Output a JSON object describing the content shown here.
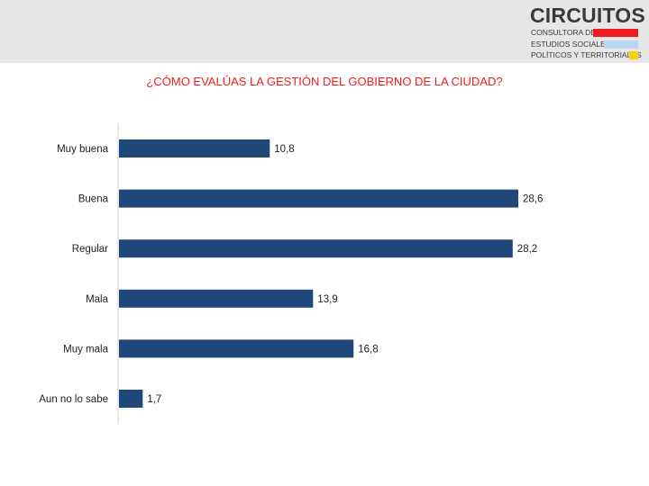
{
  "header": {
    "brand": "CIRCUITOS",
    "tagline_lines": [
      "CONSULTORA DE",
      "ESTUDIOS SOCIALES,",
      "POLÍTICOS Y TERRITORIALES"
    ],
    "stripe_colors": [
      "#ee1c1c",
      "#b9d6f2",
      "#f5d20a"
    ],
    "background_color": "#e6e6e6"
  },
  "chart_data": {
    "type": "bar",
    "orientation": "horizontal",
    "title": "¿CÓMO EVALÚAS LA GESTIÓN DEL GOBIERNO DE LA CIUDAD?",
    "categories": [
      "Muy buena",
      "Buena",
      "Regular",
      "Mala",
      "Muy mala",
      "Aun no lo sabe"
    ],
    "values": [
      10.8,
      28.6,
      28.2,
      13.9,
      16.8,
      1.7
    ],
    "value_labels": [
      "10,8",
      "28,6",
      "28,2",
      "13,9",
      "16,8",
      "1,7"
    ],
    "xlim": [
      0,
      30
    ],
    "grid": false,
    "legend": "none",
    "bar_color": "#1f4779",
    "title_color": "#ee1c1c",
    "axis_color": "#cccccc"
  }
}
